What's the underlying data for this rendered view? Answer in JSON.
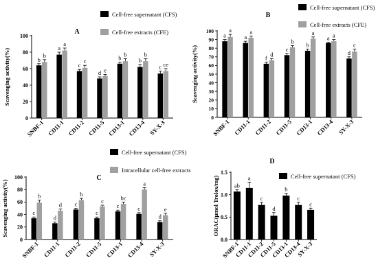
{
  "chart_data": [
    {
      "panel": "A",
      "type": "bar",
      "ylabel": "Scavenging activity(%)",
      "ylim": [
        0,
        100
      ],
      "yticks": [
        0,
        20,
        40,
        60,
        80,
        100
      ],
      "categories": [
        "SNBF-1",
        "CD11-1",
        "CD11-2",
        "CD11-5",
        "CD13-1",
        "CD13-4",
        "SY-X-3"
      ],
      "series": [
        {
          "name": "Cell-free supernatant (CFS)",
          "color": "#000000",
          "values": [
            64,
            77,
            57,
            48,
            66,
            62,
            54
          ],
          "errors": [
            2,
            3,
            2,
            2,
            2,
            3,
            3
          ],
          "labels": [
            "b",
            "a",
            "c",
            "d",
            "b",
            "b",
            "c"
          ]
        },
        {
          "name": "Cell-free extracts  (CFE)",
          "color": "#a0a0a0",
          "values": [
            68,
            82,
            61,
            51,
            69,
            69,
            57
          ],
          "errors": [
            3,
            3,
            3,
            2,
            3,
            3,
            3
          ],
          "labels": [
            "b",
            "a",
            "c",
            "e",
            "b",
            "b",
            "ce"
          ]
        }
      ]
    },
    {
      "panel": "B",
      "type": "bar",
      "ylabel": "Scavenging activity(%)",
      "ylim": [
        0,
        100
      ],
      "yticks": [
        0,
        10,
        20,
        30,
        40,
        50,
        60,
        70,
        80,
        90,
        100
      ],
      "categories": [
        "SNBF-1",
        "CD11-1",
        "CD11-2",
        "CD11-5",
        "CD13-1",
        "CD13-4",
        "SY-X-3"
      ],
      "series": [
        {
          "name": "Cell-free supernatant (CFS)",
          "color": "#000000",
          "values": [
            88,
            86,
            62,
            72,
            77,
            86,
            68
          ],
          "errors": [
            2,
            2,
            2,
            2,
            2,
            1,
            2
          ],
          "labels": [
            "a",
            "a",
            "f",
            "c",
            "b",
            "a",
            "d"
          ]
        },
        {
          "name": "Cell-free extracts  (CFE)",
          "color": "#a0a0a0",
          "values": [
            93,
            92,
            66,
            81,
            91,
            88,
            76
          ],
          "errors": [
            3,
            2,
            2,
            2,
            2,
            2,
            3
          ],
          "labels": [
            "a",
            "a",
            "d",
            "b",
            "a",
            "a",
            "c"
          ]
        }
      ]
    },
    {
      "panel": "C",
      "type": "bar",
      "ylabel": "Scavenging activity(%)",
      "ylim": [
        0,
        100
      ],
      "yticks": [
        0,
        20,
        40,
        60,
        80,
        100
      ],
      "categories": [
        "SNBF-1",
        "CD11-1",
        "CD11-2",
        "CD11-5",
        "CD13-1",
        "CD13-4",
        "SY-X-3"
      ],
      "series": [
        {
          "name": "Cell-free supernatant (CFS)",
          "color": "#000000",
          "values": [
            34,
            26,
            48,
            34,
            45,
            41,
            28
          ],
          "errors": [
            2,
            2,
            2,
            2,
            2,
            2,
            2
          ],
          "labels": [
            "c",
            "d",
            "c",
            "c",
            "c",
            "c",
            "d"
          ]
        },
        {
          "name": "Intracellular cell-free extracts",
          "color": "#a0a0a0",
          "values": [
            59,
            46,
            63,
            53,
            57,
            80,
            39
          ],
          "errors": [
            4,
            3,
            3,
            2,
            3,
            3,
            3
          ],
          "labels": [
            "b",
            "d",
            "b",
            "c",
            "bc",
            "a",
            "e"
          ]
        }
      ]
    },
    {
      "panel": "D",
      "type": "bar",
      "ylabel": "ORAC(μmol Trolox/mg)",
      "ylim": [
        0,
        1.5
      ],
      "yticks": [
        0.0,
        0.5,
        1.0,
        1.5
      ],
      "categories": [
        "SNBF-1",
        "CD11-1",
        "CD11-2",
        "CD11-5",
        "CD13-1",
        "CD13-4",
        "SY-X-3"
      ],
      "series": [
        {
          "name": "Cell-free supernatant (CFS)",
          "color": "#000000",
          "values": [
            1.07,
            1.15,
            0.77,
            0.53,
            0.98,
            0.77,
            0.66
          ],
          "errors": [
            0.04,
            0.13,
            0.06,
            0.07,
            0.05,
            0.06,
            0.04
          ],
          "labels": [
            "ab",
            "a",
            "c",
            "d",
            "b",
            "c",
            "c"
          ]
        }
      ]
    }
  ]
}
